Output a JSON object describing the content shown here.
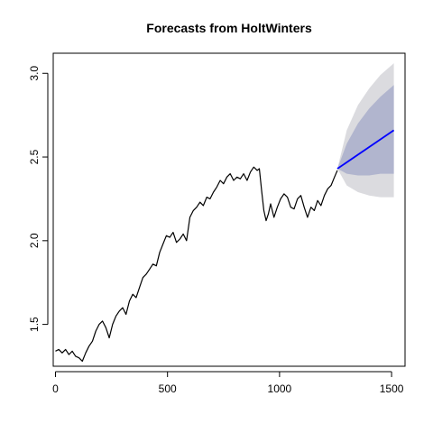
{
  "chart_data": {
    "type": "line",
    "title": "Forecasts from HoltWinters",
    "xlabel": "",
    "ylabel": "",
    "xlim": [
      -10,
      1560
    ],
    "ylim": [
      1.25,
      3.12
    ],
    "x_ticks": [
      0,
      500,
      1000,
      1500
    ],
    "x_tick_labels": [
      "0",
      "500",
      "1000",
      "1500"
    ],
    "y_ticks": [
      1.5,
      2.0,
      2.5,
      3.0
    ],
    "y_tick_labels": [
      "1.5",
      "2.0",
      "2.5",
      "3.0"
    ],
    "grid": false,
    "colors": {
      "history": "#000000",
      "forecast": "#0000ff",
      "band80": "#b1b5ce",
      "band95": "#dbdbdf"
    },
    "history_series": {
      "x": [
        0,
        15,
        30,
        45,
        60,
        75,
        90,
        105,
        120,
        135,
        150,
        165,
        180,
        195,
        210,
        225,
        240,
        255,
        270,
        285,
        300,
        315,
        330,
        345,
        360,
        375,
        390,
        405,
        420,
        435,
        450,
        465,
        480,
        495,
        510,
        525,
        540,
        555,
        570,
        585,
        600,
        615,
        630,
        645,
        660,
        675,
        690,
        705,
        720,
        735,
        750,
        765,
        780,
        795,
        810,
        825,
        840,
        855,
        870,
        885,
        900,
        910,
        920,
        930,
        940,
        950,
        960,
        975,
        990,
        1005,
        1020,
        1035,
        1050,
        1065,
        1080,
        1095,
        1110,
        1125,
        1140,
        1155,
        1170,
        1185,
        1200,
        1215,
        1230,
        1245,
        1258
      ],
      "y": [
        1.34,
        1.35,
        1.33,
        1.35,
        1.32,
        1.34,
        1.31,
        1.3,
        1.28,
        1.33,
        1.37,
        1.4,
        1.46,
        1.5,
        1.52,
        1.48,
        1.42,
        1.5,
        1.55,
        1.58,
        1.6,
        1.56,
        1.64,
        1.68,
        1.66,
        1.72,
        1.78,
        1.8,
        1.83,
        1.86,
        1.85,
        1.93,
        1.98,
        2.03,
        2.02,
        2.05,
        1.99,
        2.01,
        2.04,
        2.0,
        2.14,
        2.18,
        2.2,
        2.23,
        2.21,
        2.26,
        2.25,
        2.29,
        2.32,
        2.36,
        2.34,
        2.38,
        2.4,
        2.36,
        2.38,
        2.37,
        2.4,
        2.36,
        2.41,
        2.44,
        2.42,
        2.43,
        2.3,
        2.18,
        2.12,
        2.16,
        2.22,
        2.14,
        2.2,
        2.25,
        2.28,
        2.26,
        2.2,
        2.19,
        2.25,
        2.27,
        2.2,
        2.14,
        2.2,
        2.18,
        2.24,
        2.21,
        2.27,
        2.31,
        2.33,
        2.38,
        2.42
      ]
    },
    "forecast_series": {
      "x": [
        1258,
        1510
      ],
      "y": [
        2.43,
        2.66
      ]
    },
    "interval_80": {
      "x": [
        1258,
        1300,
        1350,
        1400,
        1450,
        1510
      ],
      "upper": [
        2.43,
        2.58,
        2.7,
        2.79,
        2.86,
        2.93
      ],
      "lower": [
        2.43,
        2.4,
        2.39,
        2.39,
        2.4,
        2.4
      ]
    },
    "interval_95": {
      "x": [
        1258,
        1300,
        1350,
        1400,
        1450,
        1510
      ],
      "upper": [
        2.43,
        2.66,
        2.81,
        2.91,
        2.99,
        3.06
      ],
      "lower": [
        2.43,
        2.33,
        2.29,
        2.27,
        2.26,
        2.26
      ]
    }
  }
}
